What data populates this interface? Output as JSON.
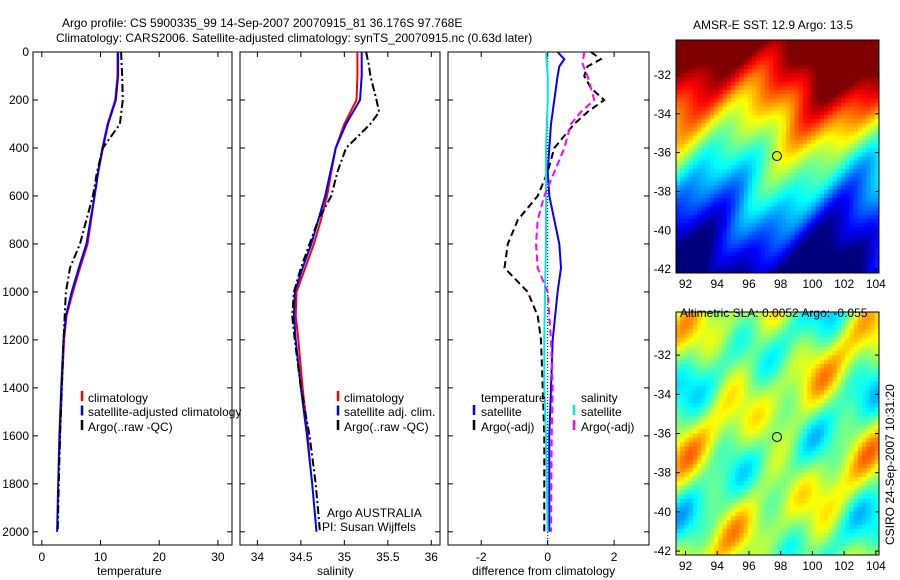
{
  "title_line1": "Argo profile: CS 5900335_99 14-Sep-2007 20070915_81 36.176S 97.768E",
  "title_line2": "Climatology: CARS2006. Satellite-adjusted climatology: synTS_20070915.nc (0.63d later)",
  "footer_stamp": "CSIRO 24-Sep-2007 10:31:20",
  "colors": {
    "clim": "#ff0000",
    "sat": "#0000ff",
    "argo": "#000000",
    "sal_sat": "#00e5ee",
    "sal_argo": "#ff00ff"
  },
  "chart_data": [
    {
      "type": "line",
      "id": "temp",
      "xlabel": "temperature",
      "ylabel": "",
      "xlim": [
        -1.5,
        32.4
      ],
      "ylim": [
        2055,
        0
      ],
      "xticks": [
        0,
        10,
        20,
        30
      ],
      "yticks": [
        0,
        200,
        400,
        600,
        800,
        1000,
        1200,
        1400,
        1600,
        1800,
        2000
      ],
      "legend": [
        "climatology",
        "satellite-adjusted climatology",
        "Argo(..raw -QC)"
      ],
      "series": [
        {
          "name": "climatology",
          "color": "#ff0000",
          "style": "solid",
          "depth": [
            0,
            100,
            200,
            300,
            400,
            500,
            600,
            700,
            800,
            900,
            1000,
            1100,
            1200,
            1400,
            1600,
            1680
          ],
          "values": [
            12.9,
            12.9,
            12.5,
            11.2,
            10.3,
            9.6,
            9.0,
            8.4,
            7.8,
            6.5,
            5.3,
            4.2,
            3.8,
            3.4,
            3.1,
            3.0
          ]
        },
        {
          "name": "satellite-adjusted climatology",
          "color": "#0000ff",
          "style": "solid",
          "depth": [
            0,
            100,
            200,
            300,
            400,
            500,
            600,
            700,
            800,
            900,
            1000,
            1100,
            1200,
            1400,
            1600,
            1800,
            2000
          ],
          "values": [
            13.0,
            13.0,
            12.6,
            11.3,
            10.4,
            9.6,
            9.0,
            8.3,
            7.6,
            6.3,
            5.1,
            4.1,
            3.7,
            3.3,
            3.0,
            2.8,
            2.6
          ]
        },
        {
          "name": "Argo(..raw -QC)",
          "color": "#000000",
          "style": "dashdot",
          "depth": [
            0,
            50,
            100,
            200,
            300,
            400,
            500,
            600,
            700,
            800,
            900,
            1000,
            1100,
            1200,
            1400,
            1600,
            1800,
            2000
          ],
          "values": [
            13.5,
            13.6,
            13.7,
            13.8,
            13.3,
            10.4,
            9.4,
            8.7,
            7.6,
            6.5,
            4.8,
            4.1,
            3.9,
            3.7,
            3.4,
            3.1,
            2.9,
            2.7
          ]
        }
      ]
    },
    {
      "type": "line",
      "id": "sal",
      "xlabel": "salinity",
      "xlim": [
        33.8,
        36.1
      ],
      "ylim": [
        2055,
        0
      ],
      "xticks": [
        34,
        34.5,
        35,
        35.5,
        36
      ],
      "legend": [
        "climatology",
        "satellite adj. clim.",
        "Argo(..raw -QC)"
      ],
      "annotation": [
        "Argo AUSTRALIA",
        "PI: Susan Wijffels"
      ],
      "series": [
        {
          "name": "climatology",
          "color": "#ff0000",
          "style": "solid",
          "depth": [
            0,
            100,
            200,
            300,
            400,
            500,
            600,
            700,
            800,
            900,
            1000,
            1100,
            1200,
            1400,
            1600,
            1700
          ],
          "values": [
            35.15,
            35.15,
            35.14,
            35.0,
            34.9,
            34.85,
            34.8,
            34.73,
            34.65,
            34.55,
            34.45,
            34.44,
            34.47,
            34.52,
            34.58,
            34.6
          ]
        },
        {
          "name": "satellite adj. clim.",
          "color": "#0000ff",
          "style": "solid",
          "depth": [
            0,
            100,
            200,
            300,
            400,
            500,
            600,
            700,
            800,
            900,
            1000,
            1100,
            1200,
            1400,
            1600,
            1800,
            2000
          ],
          "values": [
            35.2,
            35.2,
            35.18,
            35.02,
            34.9,
            34.84,
            34.78,
            34.7,
            34.62,
            34.52,
            34.43,
            34.42,
            34.44,
            34.5,
            34.57,
            34.63,
            34.68
          ]
        },
        {
          "name": "Argo(..raw -QC)",
          "color": "#000000",
          "style": "dashdot",
          "depth": [
            0,
            50,
            100,
            200,
            250,
            300,
            400,
            500,
            600,
            700,
            800,
            900,
            1000,
            1100,
            1200,
            1400,
            1600,
            1800,
            2000
          ],
          "values": [
            35.25,
            35.28,
            35.3,
            35.37,
            35.4,
            35.3,
            35.02,
            34.92,
            34.85,
            34.7,
            34.6,
            34.5,
            34.42,
            34.4,
            34.43,
            34.5,
            34.6,
            34.67,
            34.72
          ]
        }
      ]
    },
    {
      "type": "line",
      "id": "diff",
      "xlabel": "difference from climatology",
      "xlim": [
        -3,
        3.05
      ],
      "ylim": [
        2055,
        0
      ],
      "xticks": [
        -2,
        0,
        2
      ],
      "legend_headers": [
        "temperature",
        "salinity"
      ],
      "legend": [
        "satellite",
        "Argo(-adj)",
        "satellite",
        "Argo(-adj)"
      ],
      "series": [
        {
          "name": "temperature satellite",
          "color": "#0000ff",
          "style": "solid",
          "depth": [
            0,
            30,
            60,
            100,
            200,
            300,
            400,
            500,
            600,
            700,
            800,
            900,
            1000,
            1200,
            1400,
            1600,
            2000
          ],
          "values": [
            0.3,
            0.5,
            0.35,
            0.3,
            0.2,
            0.1,
            0.05,
            0.0,
            0.05,
            0.2,
            0.35,
            0.4,
            0.3,
            0.15,
            0.1,
            0.05,
            0.05
          ]
        },
        {
          "name": "temperature Argo(-adj)",
          "color": "#000000",
          "style": "dashed",
          "depth": [
            0,
            30,
            60,
            100,
            150,
            200,
            250,
            300,
            400,
            500,
            600,
            700,
            800,
            900,
            1000,
            1100,
            1200,
            1400,
            1600,
            2000
          ],
          "values": [
            1.3,
            1.6,
            1.2,
            1.1,
            1.3,
            1.7,
            1.2,
            0.8,
            0.2,
            0.0,
            -0.3,
            -0.9,
            -1.2,
            -1.3,
            -0.6,
            -0.3,
            -0.2,
            -0.15,
            -0.1,
            -0.1
          ]
        },
        {
          "name": "salinity satellite",
          "color": "#00e5ee",
          "style": "solid",
          "depth": [
            0,
            100,
            200,
            400,
            600,
            800,
            1000,
            1200,
            1400,
            1600,
            2000
          ],
          "values": [
            -0.05,
            0.0,
            0.0,
            -0.05,
            -0.05,
            -0.05,
            -0.08,
            -0.1,
            -0.1,
            -0.05,
            0.0
          ]
        },
        {
          "name": "salinity Argo(-adj)",
          "color": "#ff00ff",
          "style": "dashed",
          "depth": [
            0,
            50,
            100,
            150,
            200,
            250,
            300,
            400,
            500,
            600,
            700,
            800,
            900,
            1000,
            1100,
            1200,
            1400,
            1600,
            2000
          ],
          "values": [
            1.1,
            1.05,
            1.2,
            1.3,
            1.4,
            1.0,
            0.7,
            0.5,
            0.2,
            -0.1,
            -0.3,
            -0.35,
            -0.3,
            0.0,
            0.05,
            0.1,
            0.15,
            0.12,
            0.1
          ]
        }
      ]
    },
    {
      "type": "heatmap",
      "id": "sst",
      "title": "AMSR-E SST: 12.9 Argo: 13.5",
      "xlim": [
        91.4,
        104.2
      ],
      "ylim": [
        -42.2,
        -30.2
      ],
      "xticks": [
        92,
        94,
        96,
        98,
        100,
        102,
        104
      ],
      "yticks": [
        -32,
        -34,
        -36,
        -38,
        -40,
        -42
      ],
      "marker": {
        "lon": 97.768,
        "lat": -36.176
      }
    },
    {
      "type": "heatmap",
      "id": "sla",
      "title": "Altimetric SLA: 0.0052 Argo: -0.055",
      "xlim": [
        91.4,
        104.2
      ],
      "ylim": [
        -42.2,
        -29.8
      ],
      "xticks": [
        92,
        94,
        96,
        98,
        100,
        102,
        104
      ],
      "yticks": [
        -32,
        -34,
        -36,
        -38,
        -40,
        -42
      ],
      "marker": {
        "lon": 97.768,
        "lat": -36.176
      }
    }
  ]
}
